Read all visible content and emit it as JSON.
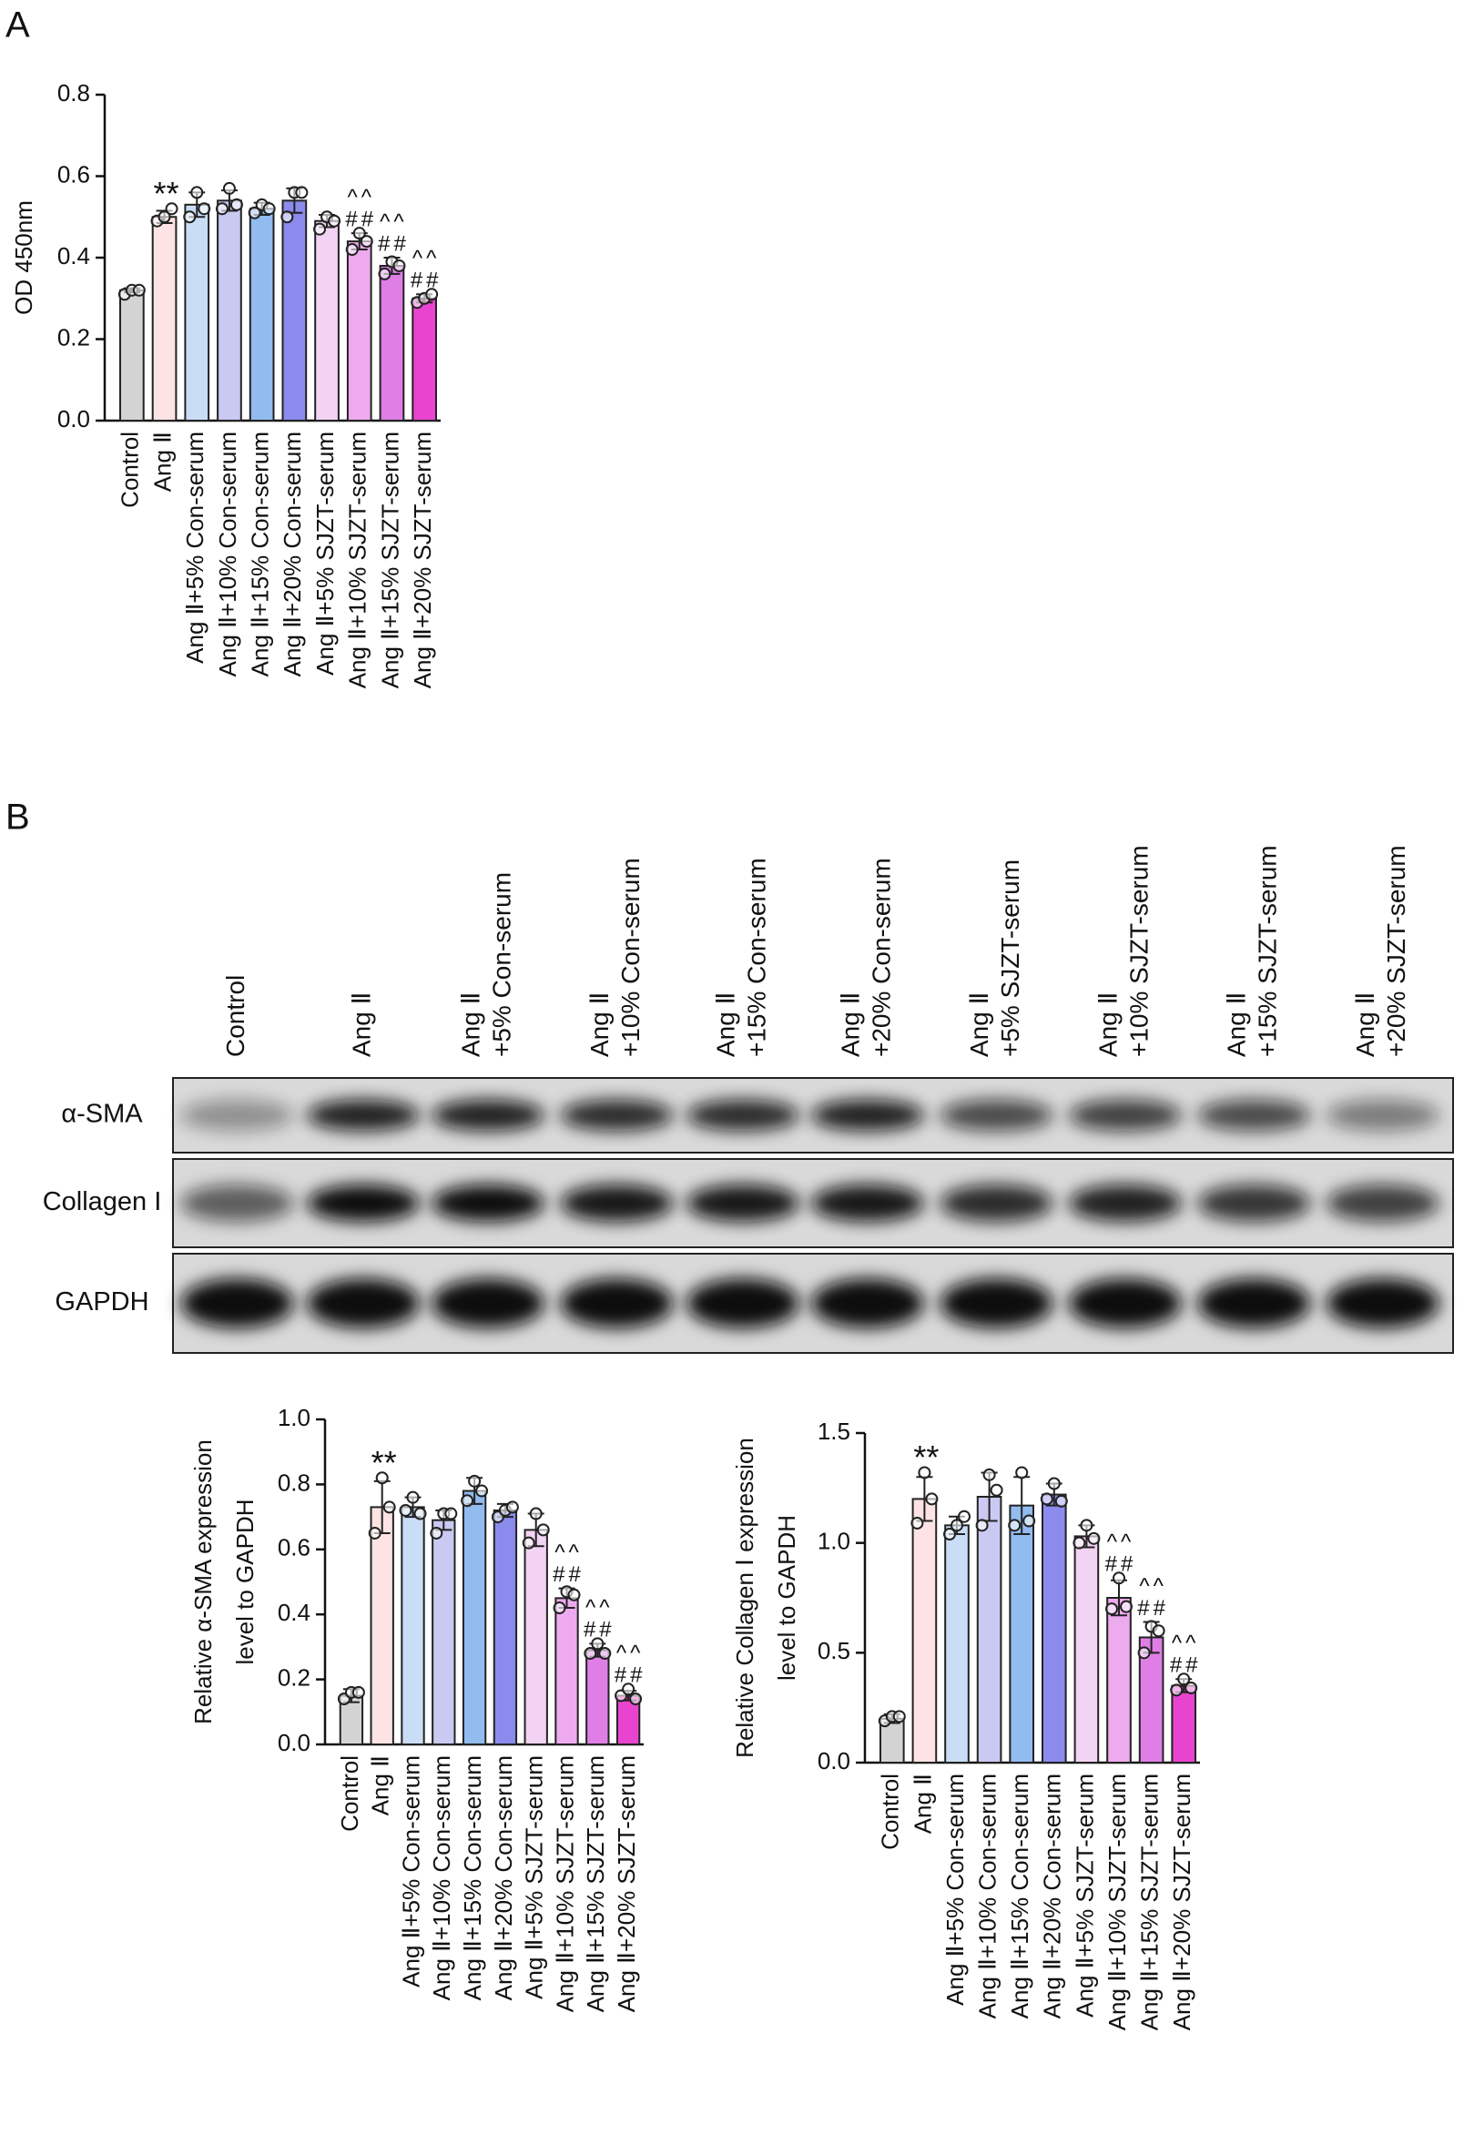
{
  "panels": [
    "A",
    "B"
  ],
  "blot": {
    "lanes": [
      [
        "Control"
      ],
      [
        "Ang Ⅱ"
      ],
      [
        "Ang Ⅱ",
        "+5% Con-serum"
      ],
      [
        "Ang Ⅱ",
        "+10% Con-serum"
      ],
      [
        "Ang Ⅱ",
        "+15% Con-serum"
      ],
      [
        "Ang Ⅱ",
        "+20% Con-serum"
      ],
      [
        "Ang Ⅱ",
        "+5% SJZT-serum"
      ],
      [
        "Ang Ⅱ",
        "+10% SJZT-serum"
      ],
      [
        "Ang Ⅱ",
        "+15% SJZT-serum"
      ],
      [
        "Ang Ⅱ",
        "+20% SJZT-serum"
      ]
    ],
    "rows": [
      "α-SMA",
      "Collagen I",
      "GAPDH"
    ]
  },
  "chart_data": [
    {
      "type": "bar",
      "ylabel": [
        "OD 450nm"
      ],
      "categories": [
        "Control",
        "Ang Ⅱ",
        "Ang Ⅱ+5% Con-serum",
        "Ang Ⅱ+10% Con-serum",
        "Ang Ⅱ+15% Con-serum",
        "Ang Ⅱ+20% Con-serum",
        "Ang Ⅱ+5% SJZT-serum",
        "Ang Ⅱ+10% SJZT-serum",
        "Ang Ⅱ+15% SJZT-serum",
        "Ang Ⅱ+20% SJZT-serum"
      ],
      "values": [
        0.32,
        0.5,
        0.53,
        0.54,
        0.52,
        0.54,
        0.49,
        0.44,
        0.38,
        0.3
      ],
      "errors": [
        0.005,
        0.015,
        0.03,
        0.025,
        0.015,
        0.03,
        0.015,
        0.02,
        0.02,
        0.01
      ],
      "points": [
        [
          0.31,
          0.32,
          0.32
        ],
        [
          0.49,
          0.5,
          0.52
        ],
        [
          0.5,
          0.56,
          0.52
        ],
        [
          0.52,
          0.57,
          0.53
        ],
        [
          0.51,
          0.53,
          0.52
        ],
        [
          0.5,
          0.56,
          0.56
        ],
        [
          0.47,
          0.5,
          0.49
        ],
        [
          0.42,
          0.46,
          0.44
        ],
        [
          0.36,
          0.39,
          0.38
        ],
        [
          0.29,
          0.3,
          0.31
        ]
      ],
      "annotations": [
        null,
        [
          "**"
        ],
        null,
        null,
        null,
        null,
        null,
        [
          "^^",
          "##"
        ],
        [
          "^^",
          "##"
        ],
        [
          "^^",
          "##"
        ]
      ],
      "colors": [
        "#d3d3d3",
        "#fde3e3",
        "#c9ddf6",
        "#c9c9f2",
        "#92bbef",
        "#8b8bee",
        "#f3d3f3",
        "#eeaaee",
        "#df7fe6",
        "#e944cf"
      ],
      "ylim": [
        0,
        0.8
      ],
      "yticks": [
        {
          "value": 0,
          "label": "0.0"
        },
        0.2,
        0.4,
        0.6,
        0.8
      ]
    },
    {
      "type": "bar",
      "ylabel": [
        "Relative α-SMA expression",
        "level to GAPDH"
      ],
      "categories": [
        "Control",
        "Ang Ⅱ",
        "Ang Ⅱ+5% Con-serum",
        "Ang Ⅱ+10% Con-serum",
        "Ang Ⅱ+15% Con-serum",
        "Ang Ⅱ+20% Con-serum",
        "Ang Ⅱ+5% SJZT-serum",
        "Ang Ⅱ+10% SJZT-serum",
        "Ang Ⅱ+15% SJZT-serum",
        "Ang Ⅱ+20% SJZT-serum"
      ],
      "values": [
        0.15,
        0.73,
        0.73,
        0.69,
        0.78,
        0.72,
        0.66,
        0.45,
        0.29,
        0.15
      ],
      "errors": [
        0.02,
        0.08,
        0.03,
        0.03,
        0.04,
        0.02,
        0.05,
        0.03,
        0.02,
        0.015
      ],
      "points": [
        [
          0.14,
          0.16,
          0.16
        ],
        [
          0.65,
          0.82,
          0.73
        ],
        [
          0.72,
          0.76,
          0.71
        ],
        [
          0.65,
          0.71,
          0.71
        ],
        [
          0.75,
          0.81,
          0.78
        ],
        [
          0.7,
          0.72,
          0.73
        ],
        [
          0.62,
          0.71,
          0.66
        ],
        [
          0.42,
          0.47,
          0.46
        ],
        [
          0.28,
          0.31,
          0.28
        ],
        [
          0.15,
          0.17,
          0.14
        ]
      ],
      "annotations": [
        null,
        [
          "**"
        ],
        null,
        null,
        null,
        null,
        null,
        [
          "^^",
          "##"
        ],
        [
          "^^",
          "##"
        ],
        [
          "^^",
          "##"
        ]
      ],
      "colors": [
        "#d3d3d3",
        "#fde3e3",
        "#c9ddf6",
        "#c9c9f2",
        "#92bbef",
        "#8b8bee",
        "#f3d3f3",
        "#eeaaee",
        "#df7fe6",
        "#e944cf"
      ],
      "ylim": [
        0,
        1.0
      ],
      "yticks": [
        {
          "value": 0,
          "label": "0.0"
        },
        0.2,
        0.4,
        0.6,
        0.8,
        {
          "value": 1.0,
          "label": "1.0"
        }
      ]
    },
    {
      "type": "bar",
      "ylabel": [
        "Relative Collagen Ⅰ expression",
        "level to GAPDH"
      ],
      "categories": [
        "Control",
        "Ang Ⅱ",
        "Ang Ⅱ+5% Con-serum",
        "Ang Ⅱ+10% Con-serum",
        "Ang Ⅱ+15% Con-serum",
        "Ang Ⅱ+20% Con-serum",
        "Ang Ⅱ+5% SJZT-serum",
        "Ang Ⅱ+10% SJZT-serum",
        "Ang Ⅱ+15% SJZT-serum",
        "Ang Ⅱ+20% SJZT-serum"
      ],
      "values": [
        0.2,
        1.2,
        1.08,
        1.21,
        1.17,
        1.22,
        1.03,
        0.75,
        0.57,
        0.35
      ],
      "errors": [
        0.02,
        0.1,
        0.04,
        0.11,
        0.13,
        0.05,
        0.05,
        0.08,
        0.07,
        0.03
      ],
      "points": [
        [
          0.19,
          0.21,
          0.21
        ],
        [
          1.09,
          1.32,
          1.2
        ],
        [
          1.04,
          1.08,
          1.12
        ],
        [
          1.08,
          1.31,
          1.24
        ],
        [
          1.08,
          1.32,
          1.1
        ],
        [
          1.2,
          1.27,
          1.19
        ],
        [
          1.0,
          1.08,
          1.02
        ],
        [
          0.7,
          0.84,
          0.71
        ],
        [
          0.5,
          0.62,
          0.6
        ],
        [
          0.33,
          0.38,
          0.34
        ]
      ],
      "annotations": [
        null,
        [
          "**"
        ],
        null,
        null,
        null,
        null,
        null,
        [
          "^^",
          "##"
        ],
        [
          "^^",
          "##"
        ],
        [
          "^^",
          "##"
        ]
      ],
      "colors": [
        "#d3d3d3",
        "#fde3e3",
        "#c9ddf6",
        "#c9c9f2",
        "#92bbef",
        "#8b8bee",
        "#f3d3f3",
        "#eeaaee",
        "#df7fe6",
        "#e944cf"
      ],
      "ylim": [
        0,
        1.5
      ],
      "yticks": [
        {
          "value": 0,
          "label": "0.0"
        },
        0.5,
        {
          "value": 1.0,
          "label": "1.0"
        },
        1.5
      ]
    }
  ]
}
